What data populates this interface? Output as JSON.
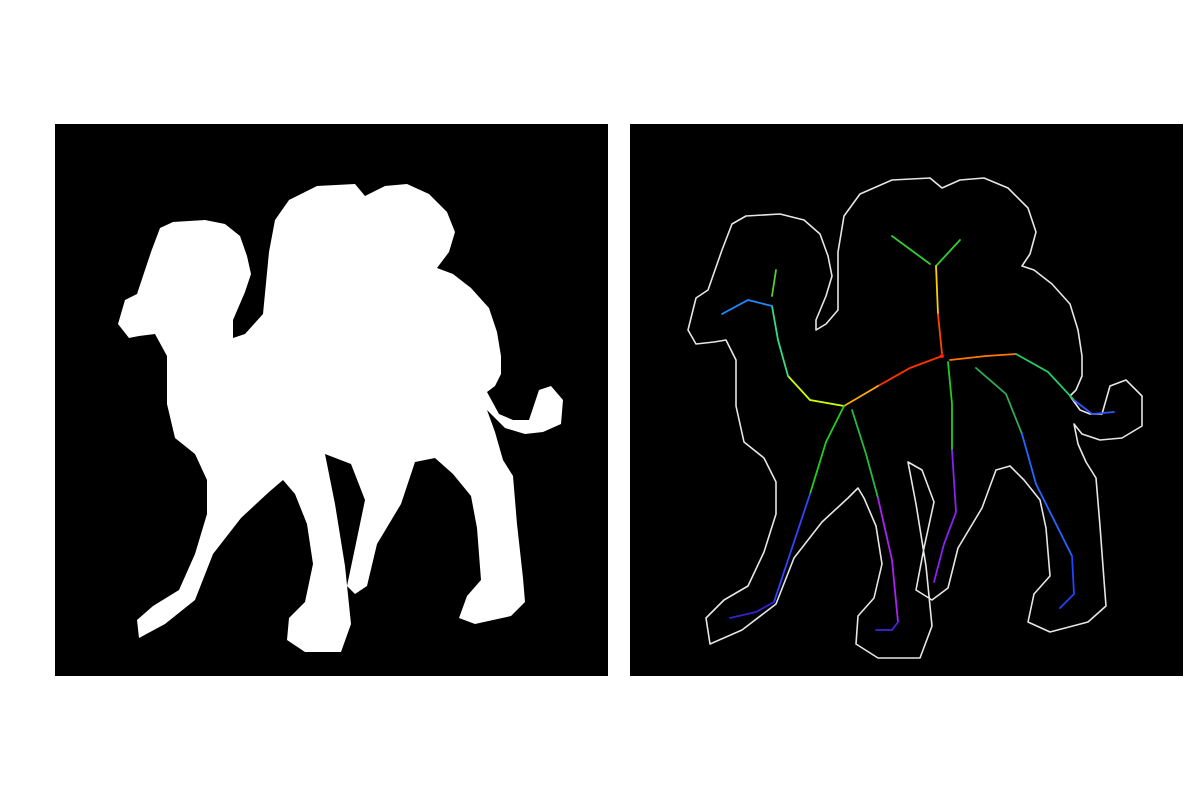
{
  "figure": {
    "panels": [
      {
        "id": "left",
        "content": "binary-silhouette",
        "background": "#000000",
        "fill": "#ffffff"
      },
      {
        "id": "right",
        "content": "contour-with-skeleton",
        "background": "#000000",
        "outline": "#ffffff",
        "skeleton_colormap": "distance-from-root"
      }
    ],
    "colors": {
      "page_background": "#ffffff",
      "panel_background": "#000000",
      "silhouette": "#ffffff",
      "contour": "#e6e6e6",
      "skeleton_root": "#ff0000"
    }
  }
}
